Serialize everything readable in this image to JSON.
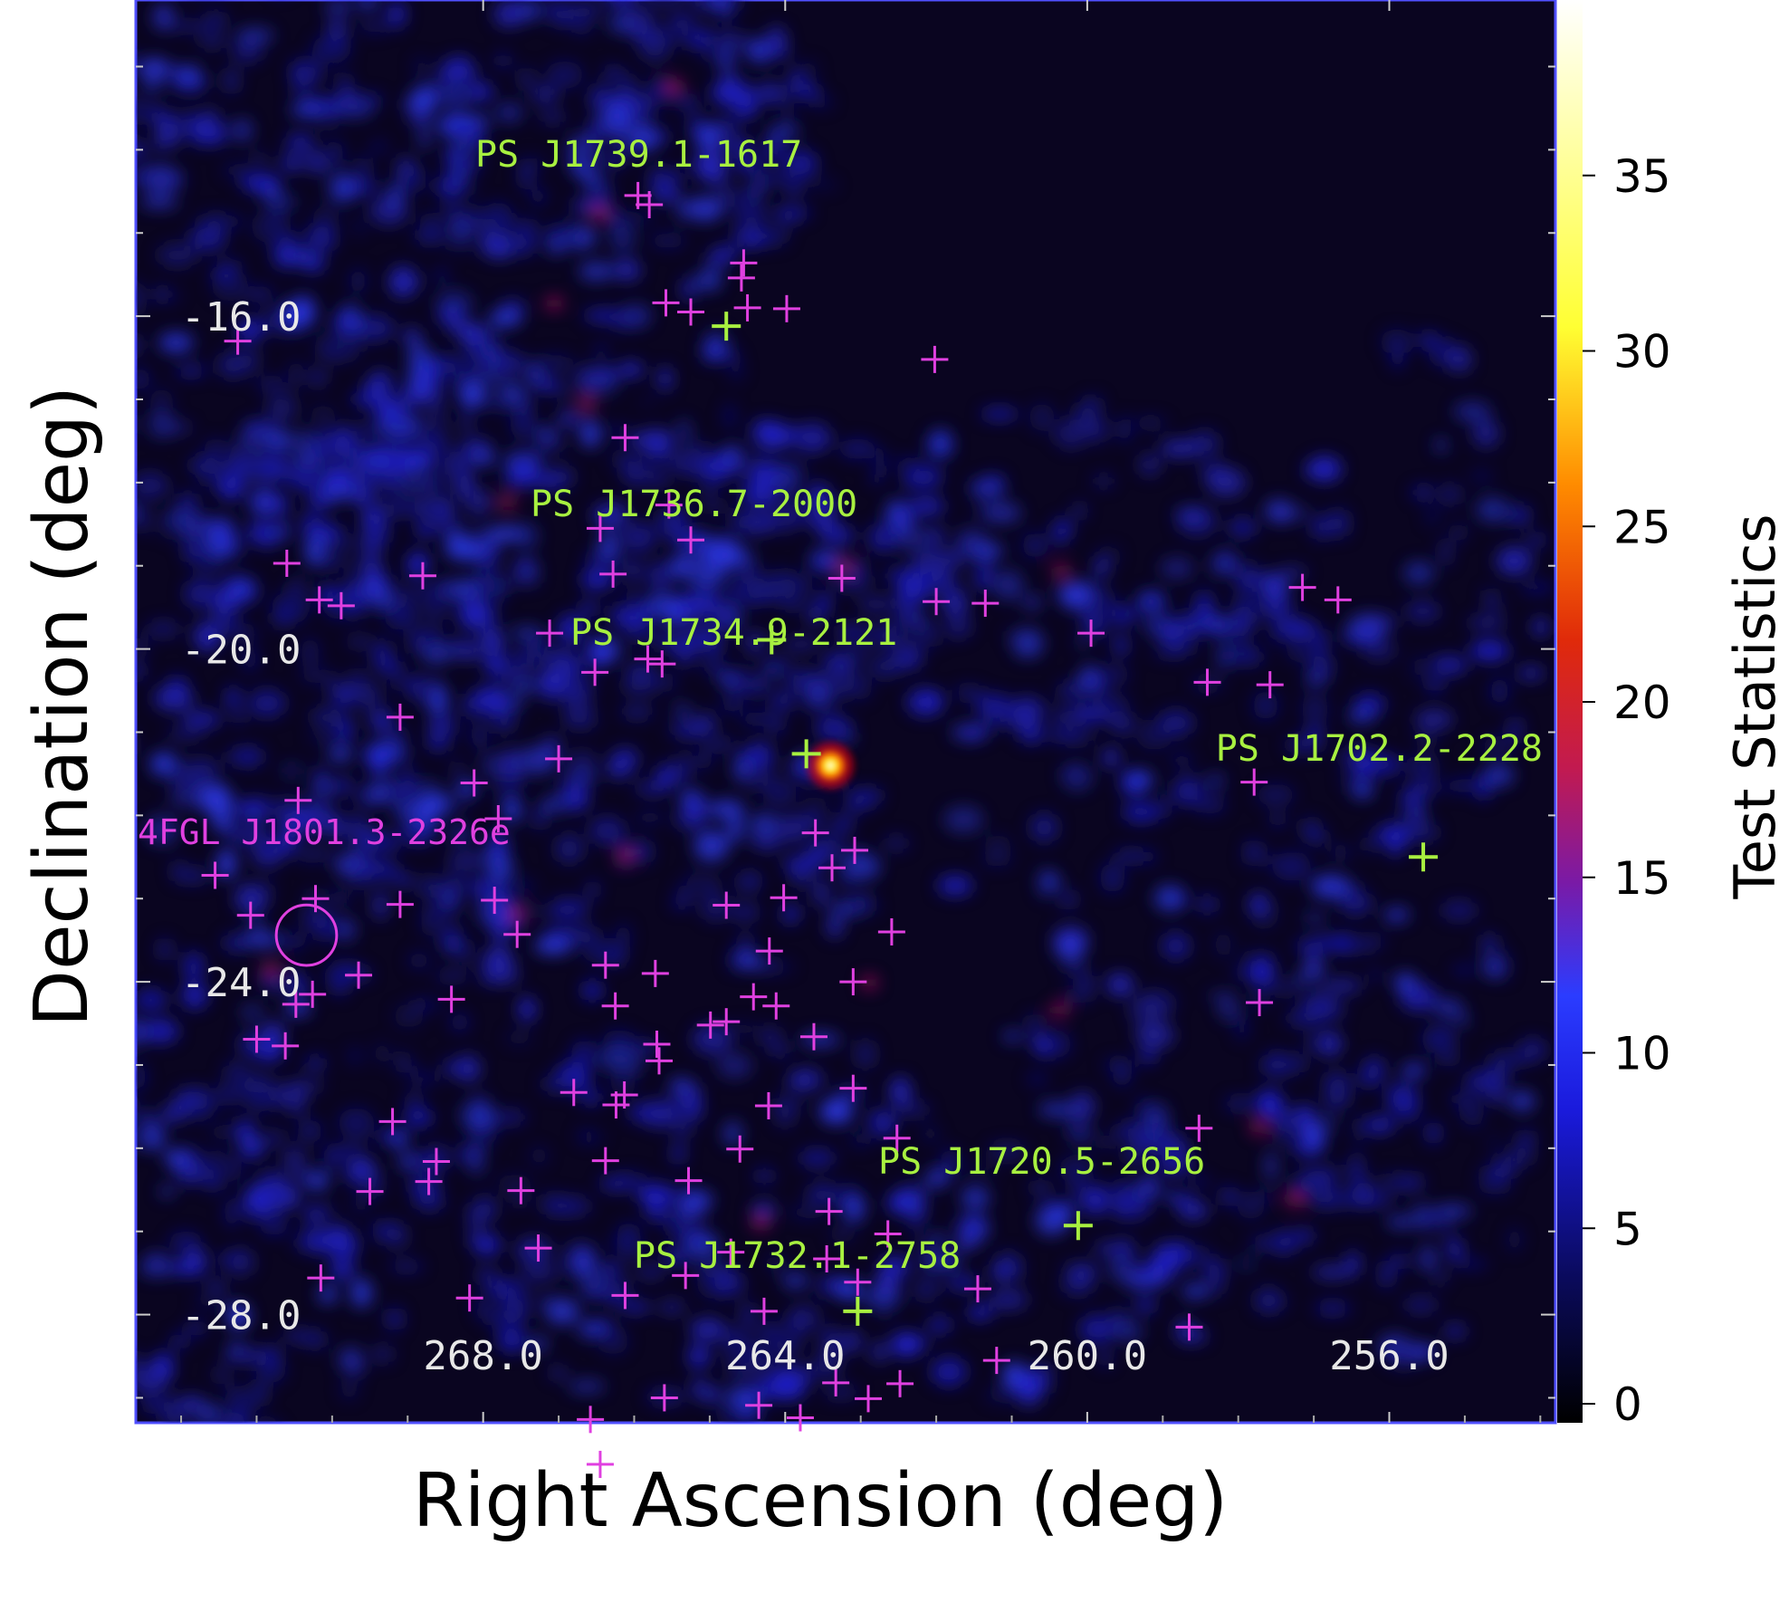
{
  "chart_data": {
    "type": "heatmap",
    "title": "",
    "xlabel": "Right Ascension (deg)",
    "ylabel": "Declination (deg)",
    "xlim": [
      272.6,
      253.8
    ],
    "ylim": [
      -29.3,
      -12.2
    ],
    "xticks": [
      268,
      264,
      260,
      256
    ],
    "xtick_labels": [
      "268.0",
      "264.0",
      "260.0",
      "256.0"
    ],
    "yticks": [
      -16,
      -20,
      -24,
      -28
    ],
    "ytick_labels": [
      "-16.0",
      "-20.0",
      "-24.0",
      "-28.0"
    ],
    "grid": false,
    "colorbar": {
      "label": "Test Statistics",
      "range": [
        0,
        40
      ],
      "ticks": [
        0,
        5,
        10,
        15,
        20,
        25,
        30,
        35
      ],
      "tick_labels": [
        "0",
        "5",
        "10",
        "15",
        "20",
        "25",
        "30",
        "35"
      ],
      "colormap": [
        "#000000",
        "#0a0a5a",
        "#1a1adc",
        "#2b3cff",
        "#7a1aa6",
        "#c21a50",
        "#e02a0a",
        "#ff8c00",
        "#ffff33",
        "#ffffff"
      ]
    },
    "hotspot": {
      "ra": 263.4,
      "dec": -21.4,
      "ts": 38
    },
    "labeled_sources": [
      {
        "name": "PS J1739.1-1617",
        "ra": 264.78,
        "dec": -16.12
      },
      {
        "name": "PS J1736.7-2000",
        "ra": 264.18,
        "dec": -19.89
      },
      {
        "name": "PS J1734.9-2121",
        "ra": 263.72,
        "dec": -21.26
      },
      {
        "name": "PS J1702.2-2228",
        "ra": 255.55,
        "dec": -22.5
      },
      {
        "name": "PS J1720.5-2656",
        "ra": 260.12,
        "dec": -26.93
      },
      {
        "name": "PS J1732.1-2758",
        "ra": 263.04,
        "dec": -27.96
      }
    ],
    "extended_source": {
      "name": "4FGL J1801.3-2326e",
      "ra": 270.34,
      "dec": -23.44,
      "radius_deg": 0.4
    },
    "catalog_sources": [
      [
        271.25,
        -16.3
      ],
      [
        270.6,
        -18.97
      ],
      [
        270.17,
        -19.41
      ],
      [
        269.88,
        -19.48
      ],
      [
        269.1,
        -20.82
      ],
      [
        270.45,
        -21.82
      ],
      [
        268.12,
        -21.61
      ],
      [
        267.8,
        -22.04
      ],
      [
        267.0,
        -21.32
      ],
      [
        265.82,
        -20.12
      ],
      [
        265.63,
        -20.18
      ],
      [
        268.8,
        -19.12
      ],
      [
        267.12,
        -19.81
      ],
      [
        265.54,
        -18.27
      ],
      [
        265.25,
        -18.69
      ],
      [
        266.45,
        -18.55
      ],
      [
        266.12,
        -17.46
      ],
      [
        264.58,
        -15.54
      ],
      [
        264.55,
        -15.36
      ],
      [
        265.95,
        -14.55
      ],
      [
        265.58,
        -15.84
      ],
      [
        264.5,
        -15.9
      ],
      [
        263.98,
        -15.91
      ],
      [
        265.8,
        -14.66
      ],
      [
        262.02,
        -16.52
      ],
      [
        263.25,
        -19.15
      ],
      [
        261.35,
        -19.45
      ],
      [
        262.0,
        -19.43
      ],
      [
        259.95,
        -19.81
      ],
      [
        257.15,
        -19.26
      ],
      [
        256.68,
        -19.41
      ],
      [
        258.41,
        -20.4
      ],
      [
        257.58,
        -20.43
      ],
      [
        257.79,
        -21.6
      ],
      [
        265.25,
        -15.95
      ],
      [
        266.28,
        -19.1
      ],
      [
        269.1,
        -23.07
      ],
      [
        267.85,
        -23.02
      ],
      [
        268.42,
        -24.21
      ],
      [
        267.55,
        -23.43
      ],
      [
        266.38,
        -23.8
      ],
      [
        265.72,
        -23.9
      ],
      [
        266.52,
        -20.28
      ],
      [
        264.42,
        -24.18
      ],
      [
        264.21,
        -23.63
      ],
      [
        264.02,
        -22.99
      ],
      [
        263.6,
        -22.21
      ],
      [
        263.08,
        -22.42
      ],
      [
        262.59,
        -23.4
      ],
      [
        263.38,
        -22.63
      ],
      [
        263.1,
        -24.0
      ],
      [
        264.22,
        -25.49
      ],
      [
        264.12,
        -24.29
      ],
      [
        264.99,
        -24.52
      ],
      [
        264.78,
        -24.48
      ],
      [
        265.67,
        -24.95
      ],
      [
        266.25,
        -24.29
      ],
      [
        269.65,
        -23.92
      ],
      [
        270.48,
        -24.27
      ],
      [
        270.26,
        -24.15
      ],
      [
        271.0,
        -24.69
      ],
      [
        270.62,
        -24.77
      ],
      [
        271.55,
        -22.72
      ],
      [
        271.08,
        -23.2
      ],
      [
        270.22,
        -23.0
      ],
      [
        266.8,
        -25.33
      ],
      [
        266.13,
        -25.36
      ],
      [
        266.38,
        -26.15
      ],
      [
        265.7,
        -24.75
      ],
      [
        265.28,
        -26.39
      ],
      [
        264.6,
        -26.01
      ],
      [
        262.52,
        -25.88
      ],
      [
        263.1,
        -25.28
      ],
      [
        263.62,
        -24.66
      ],
      [
        264.78,
        -23.08
      ],
      [
        263.42,
        -26.76
      ],
      [
        262.64,
        -27.03
      ],
      [
        263.45,
        -27.33
      ],
      [
        263.04,
        -27.61
      ],
      [
        261.45,
        -27.69
      ],
      [
        261.2,
        -28.55
      ],
      [
        262.48,
        -28.83
      ],
      [
        262.9,
        -29.01
      ],
      [
        264.72,
        -27.25
      ],
      [
        264.28,
        -27.96
      ],
      [
        265.32,
        -27.53
      ],
      [
        268.18,
        -27.8
      ],
      [
        270.15,
        -27.56
      ],
      [
        267.27,
        -27.2
      ],
      [
        268.72,
        -26.4
      ],
      [
        269.5,
        -26.52
      ],
      [
        268.62,
        -26.16
      ],
      [
        269.2,
        -25.68
      ],
      [
        267.5,
        -26.51
      ],
      [
        266.24,
        -25.48
      ],
      [
        266.12,
        -27.77
      ],
      [
        265.6,
        -29.0
      ],
      [
        264.35,
        -29.09
      ],
      [
        263.8,
        -29.24
      ],
      [
        266.58,
        -29.26
      ],
      [
        266.45,
        -29.8
      ],
      [
        263.33,
        -28.82
      ],
      [
        258.65,
        -28.15
      ],
      [
        258.52,
        -25.76
      ],
      [
        257.72,
        -24.25
      ]
    ]
  }
}
